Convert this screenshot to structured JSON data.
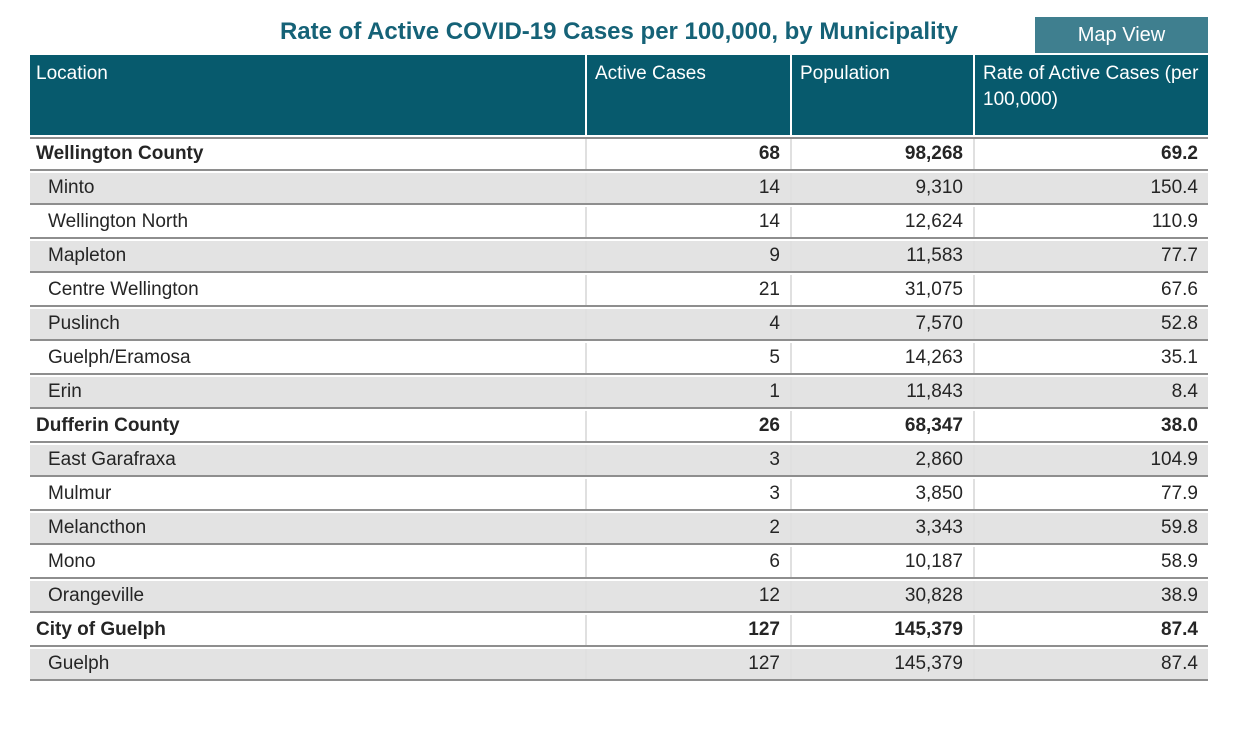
{
  "header": {
    "title": "Rate of Active COVID-19 Cases per 100,000, by Municipality",
    "map_view_label": "Map View"
  },
  "table": {
    "columns": [
      {
        "label": "Location"
      },
      {
        "label": "Active Cases"
      },
      {
        "label": "Population"
      },
      {
        "label": "Rate of Active Cases (per 100,000)"
      }
    ],
    "rows": [
      {
        "location": "Wellington County",
        "active_cases": "68",
        "population": "98,268",
        "rate": "69.2",
        "level": "county",
        "shaded": false
      },
      {
        "location": "Minto",
        "active_cases": "14",
        "population": "9,310",
        "rate": "150.4",
        "level": "municipality",
        "shaded": true
      },
      {
        "location": "Wellington North",
        "active_cases": "14",
        "population": "12,624",
        "rate": "110.9",
        "level": "municipality",
        "shaded": false
      },
      {
        "location": "Mapleton",
        "active_cases": "9",
        "population": "11,583",
        "rate": "77.7",
        "level": "municipality",
        "shaded": true
      },
      {
        "location": "Centre Wellington",
        "active_cases": "21",
        "population": "31,075",
        "rate": "67.6",
        "level": "municipality",
        "shaded": false
      },
      {
        "location": "Puslinch",
        "active_cases": "4",
        "population": "7,570",
        "rate": "52.8",
        "level": "municipality",
        "shaded": true
      },
      {
        "location": "Guelph/Eramosa",
        "active_cases": "5",
        "population": "14,263",
        "rate": "35.1",
        "level": "municipality",
        "shaded": false
      },
      {
        "location": "Erin",
        "active_cases": "1",
        "population": "11,843",
        "rate": "8.4",
        "level": "municipality",
        "shaded": true
      },
      {
        "location": "Dufferin County",
        "active_cases": "26",
        "population": "68,347",
        "rate": "38.0",
        "level": "county",
        "shaded": false
      },
      {
        "location": "East Garafraxa",
        "active_cases": "3",
        "population": "2,860",
        "rate": "104.9",
        "level": "municipality",
        "shaded": true
      },
      {
        "location": "Mulmur",
        "active_cases": "3",
        "population": "3,850",
        "rate": "77.9",
        "level": "municipality",
        "shaded": false
      },
      {
        "location": "Melancthon",
        "active_cases": "2",
        "population": "3,343",
        "rate": "59.8",
        "level": "municipality",
        "shaded": true
      },
      {
        "location": "Mono",
        "active_cases": "6",
        "population": "10,187",
        "rate": "58.9",
        "level": "municipality",
        "shaded": false
      },
      {
        "location": "Orangeville",
        "active_cases": "12",
        "population": "30,828",
        "rate": "38.9",
        "level": "municipality",
        "shaded": true
      },
      {
        "location": "City of Guelph",
        "active_cases": "127",
        "population": "145,379",
        "rate": "87.4",
        "level": "county",
        "shaded": false
      },
      {
        "location": "Guelph",
        "active_cases": "127",
        "population": "145,379",
        "rate": "87.4",
        "level": "municipality",
        "shaded": true
      }
    ]
  },
  "colors": {
    "header_bg": "#075A6D",
    "title_text": "#156277",
    "button_bg": "#3F7F8F",
    "shaded_row": "#E3E3E3",
    "row_border": "#8E8E8E",
    "column_divider": "#E0E0E0"
  }
}
